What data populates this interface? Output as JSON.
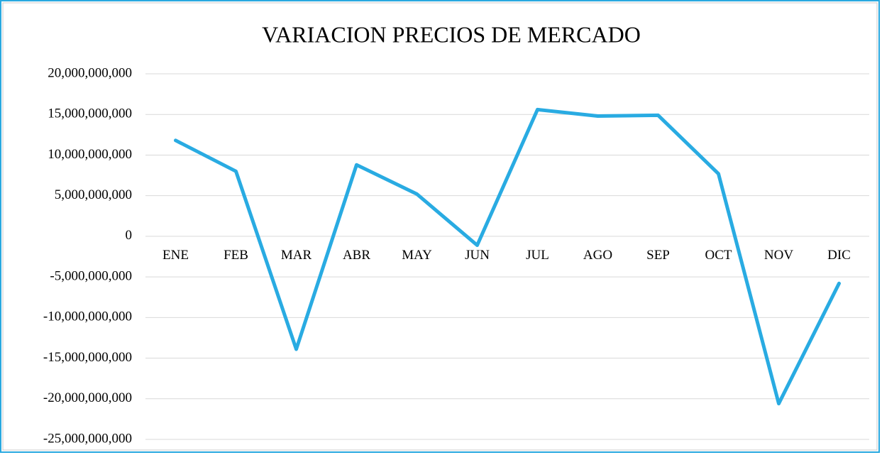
{
  "chart_data": {
    "type": "line",
    "title": "VARIACION PRECIOS DE MERCADO",
    "categories": [
      "ENE",
      "FEB",
      "MAR",
      "ABR",
      "MAY",
      "JUN",
      "JUL",
      "AGO",
      "SEP",
      "OCT",
      "NOV",
      "DIC"
    ],
    "series": [
      {
        "color": "#29abe2",
        "values": [
          11800000000,
          8000000000,
          -13900000000,
          8800000000,
          5200000000,
          -1100000000,
          15600000000,
          14800000000,
          14900000000,
          7700000000,
          -20600000000,
          -5800000000
        ]
      }
    ],
    "ylim": [
      -25000000000,
      20000000000
    ],
    "yticks": [
      {
        "value": -25000000000,
        "label": "-25,000,000,000"
      },
      {
        "value": -20000000000,
        "label": "-20,000,000,000"
      },
      {
        "value": -15000000000,
        "label": "-15,000,000,000"
      },
      {
        "value": -10000000000,
        "label": "-10,000,000,000"
      },
      {
        "value": -5000000000,
        "label": "-5,000,000,000"
      },
      0,
      {
        "value": 5000000000,
        "label": "5,000,000,000"
      },
      {
        "value": 10000000000,
        "label": "10,000,000,000"
      },
      {
        "value": 15000000000,
        "label": "15,000,000,000"
      },
      {
        "value": 20000000000,
        "label": "20,000,000,000"
      }
    ],
    "grid": true
  }
}
